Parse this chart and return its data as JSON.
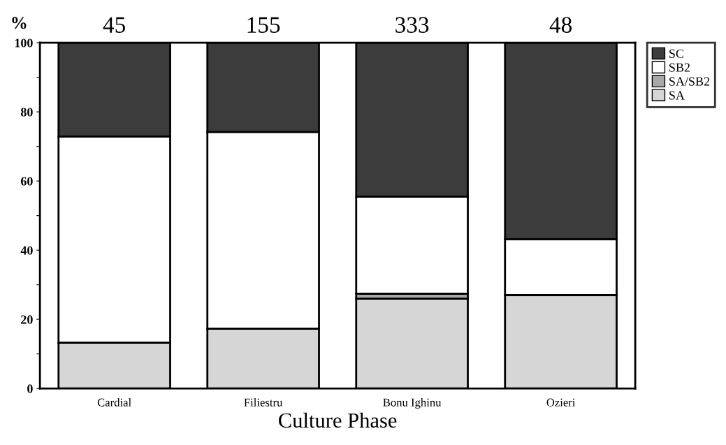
{
  "chart_data": {
    "type": "bar",
    "stacked": true,
    "xlabel": "Culture Phase",
    "ylabel": "%",
    "categories": [
      "Cardial",
      "Filiestru",
      "Bonu Ighinu",
      "Ozieri"
    ],
    "series": [
      {
        "name": "SA",
        "color": "#d6d6d6",
        "values": [
          13.3,
          17.3,
          26.0,
          27.0
        ]
      },
      {
        "name": "SA/SB2",
        "color": "#a8a8a8",
        "values": [
          0,
          0,
          1.4,
          0
        ]
      },
      {
        "name": "SB2",
        "color": "#ffffff",
        "values": [
          59.6,
          56.9,
          28.1,
          16.2
        ]
      },
      {
        "name": "SC",
        "color": "#3c3c3c",
        "values": [
          27.1,
          25.8,
          44.5,
          56.8
        ]
      }
    ],
    "annotations": [
      "45",
      "155",
      "333",
      "48"
    ],
    "ylim": [
      0,
      100
    ],
    "yticks": [
      0,
      {
        "value": 10,
        "label": null
      },
      20,
      {
        "value": 30,
        "label": null
      },
      40,
      {
        "value": 50,
        "label": null
      },
      60,
      {
        "value": 70,
        "label": null
      },
      80,
      {
        "value": 90,
        "label": null
      },
      100
    ],
    "grid": false,
    "legend": "top right"
  }
}
